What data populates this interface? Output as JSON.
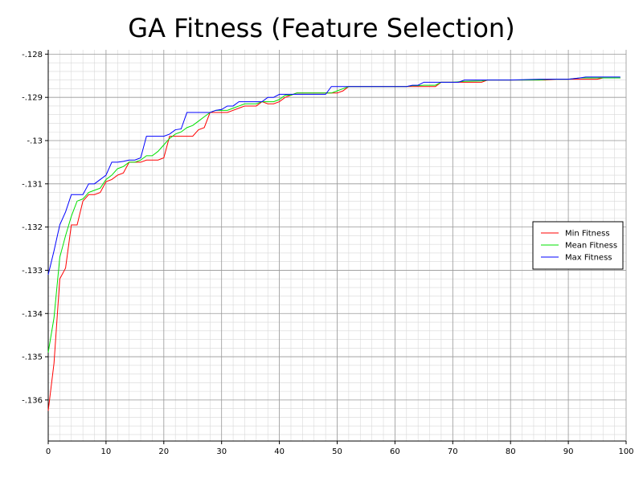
{
  "chart_data": {
    "type": "line",
    "title": "GA Fitness (Feature Selection)",
    "xlabel": "",
    "ylabel": "",
    "xlim": [
      0,
      100
    ],
    "ylim": [
      -0.13695,
      -0.1279
    ],
    "x_ticks": [
      0,
      10,
      20,
      30,
      40,
      50,
      60,
      70,
      80,
      90,
      100
    ],
    "y_ticks": [
      -0.128,
      -0.129,
      -0.13,
      -0.131,
      -0.132,
      -0.133,
      -0.134,
      -0.135,
      -0.136
    ],
    "y_tick_labels": [
      "-.128",
      "-.129",
      "-.13",
      "-.131",
      "-.132",
      "-.133",
      "-.134",
      "-.135",
      "-.136"
    ],
    "grid": true,
    "minor_grid": true,
    "legend_position": "right",
    "series": [
      {
        "name": "Min Fitness",
        "color": "#ff0000",
        "points": [
          [
            0,
            -0.13625
          ],
          [
            1,
            -0.13515
          ],
          [
            2,
            -0.1332
          ],
          [
            3,
            -0.13295
          ],
          [
            4,
            -0.13195
          ],
          [
            5,
            -0.13195
          ],
          [
            6,
            -0.1314
          ],
          [
            7,
            -0.13125
          ],
          [
            8,
            -0.13125
          ],
          [
            9,
            -0.1312
          ],
          [
            10,
            -0.13095
          ],
          [
            11,
            -0.1309
          ],
          [
            12,
            -0.1308
          ],
          [
            13,
            -0.13075
          ],
          [
            14,
            -0.1305
          ],
          [
            15,
            -0.1305
          ],
          [
            16,
            -0.1305
          ],
          [
            17,
            -0.13045
          ],
          [
            18,
            -0.13045
          ],
          [
            19,
            -0.13045
          ],
          [
            20,
            -0.1304
          ],
          [
            21,
            -0.1299
          ],
          [
            22,
            -0.1299
          ],
          [
            23,
            -0.1299
          ],
          [
            24,
            -0.1299
          ],
          [
            25,
            -0.1299
          ],
          [
            26,
            -0.12975
          ],
          [
            27,
            -0.1297
          ],
          [
            28,
            -0.12935
          ],
          [
            29,
            -0.12935
          ],
          [
            30,
            -0.12935
          ],
          [
            31,
            -0.12935
          ],
          [
            32,
            -0.1293
          ],
          [
            33,
            -0.12925
          ],
          [
            34,
            -0.1292
          ],
          [
            35,
            -0.1292
          ],
          [
            36,
            -0.1292
          ],
          [
            37,
            -0.1291
          ],
          [
            38,
            -0.12915
          ],
          [
            39,
            -0.12915
          ],
          [
            40,
            -0.1291
          ],
          [
            41,
            -0.129
          ],
          [
            42,
            -0.12895
          ],
          [
            43,
            -0.1289
          ],
          [
            44,
            -0.1289
          ],
          [
            45,
            -0.1289
          ],
          [
            46,
            -0.1289
          ],
          [
            47,
            -0.1289
          ],
          [
            48,
            -0.1289
          ],
          [
            49,
            -0.1289
          ],
          [
            50,
            -0.1289
          ],
          [
            51,
            -0.12885
          ],
          [
            52,
            -0.12875
          ],
          [
            55,
            -0.12875
          ],
          [
            60,
            -0.12875
          ],
          [
            62,
            -0.12875
          ],
          [
            63,
            -0.12875
          ],
          [
            64,
            -0.12875
          ],
          [
            65,
            -0.12875
          ],
          [
            67,
            -0.12875
          ],
          [
            68,
            -0.12865
          ],
          [
            70,
            -0.12865
          ],
          [
            71,
            -0.12865
          ],
          [
            72,
            -0.12865
          ],
          [
            75,
            -0.12865
          ],
          [
            76,
            -0.1286
          ],
          [
            80,
            -0.1286
          ],
          [
            85,
            -0.1286
          ],
          [
            86,
            -0.1286
          ],
          [
            88,
            -0.12858
          ],
          [
            90,
            -0.12858
          ],
          [
            92,
            -0.12858
          ],
          [
            93,
            -0.12858
          ],
          [
            95,
            -0.12858
          ],
          [
            96,
            -0.12855
          ],
          [
            99,
            -0.12855
          ]
        ]
      },
      {
        "name": "Mean Fitness",
        "color": "#00e000",
        "points": [
          [
            0,
            -0.1349
          ],
          [
            1,
            -0.1341
          ],
          [
            2,
            -0.1327
          ],
          [
            3,
            -0.1322
          ],
          [
            4,
            -0.13175
          ],
          [
            5,
            -0.1314
          ],
          [
            6,
            -0.13135
          ],
          [
            7,
            -0.1312
          ],
          [
            8,
            -0.13115
          ],
          [
            9,
            -0.1311
          ],
          [
            10,
            -0.1309
          ],
          [
            11,
            -0.1308
          ],
          [
            12,
            -0.13065
          ],
          [
            13,
            -0.1306
          ],
          [
            14,
            -0.1305
          ],
          [
            15,
            -0.1305
          ],
          [
            16,
            -0.13045
          ],
          [
            17,
            -0.13035
          ],
          [
            18,
            -0.13035
          ],
          [
            19,
            -0.13025
          ],
          [
            20,
            -0.1301
          ],
          [
            21,
            -0.12995
          ],
          [
            22,
            -0.12985
          ],
          [
            23,
            -0.1298
          ],
          [
            24,
            -0.1297
          ],
          [
            25,
            -0.12965
          ],
          [
            26,
            -0.12955
          ],
          [
            27,
            -0.12945
          ],
          [
            28,
            -0.12935
          ],
          [
            29,
            -0.1293
          ],
          [
            30,
            -0.1293
          ],
          [
            31,
            -0.1293
          ],
          [
            32,
            -0.12925
          ],
          [
            33,
            -0.1292
          ],
          [
            34,
            -0.12915
          ],
          [
            35,
            -0.12915
          ],
          [
            36,
            -0.12915
          ],
          [
            37,
            -0.1291
          ],
          [
            38,
            -0.1291
          ],
          [
            39,
            -0.1291
          ],
          [
            40,
            -0.12905
          ],
          [
            41,
            -0.12895
          ],
          [
            42,
            -0.12895
          ],
          [
            43,
            -0.1289
          ],
          [
            44,
            -0.1289
          ],
          [
            45,
            -0.1289
          ],
          [
            46,
            -0.1289
          ],
          [
            47,
            -0.1289
          ],
          [
            48,
            -0.1289
          ],
          [
            49,
            -0.1289
          ],
          [
            50,
            -0.12885
          ],
          [
            51,
            -0.1288
          ],
          [
            52,
            -0.12875
          ],
          [
            55,
            -0.12875
          ],
          [
            60,
            -0.12875
          ],
          [
            62,
            -0.12875
          ],
          [
            63,
            -0.12873
          ],
          [
            64,
            -0.12873
          ],
          [
            65,
            -0.12872
          ],
          [
            67,
            -0.12872
          ],
          [
            68,
            -0.12865
          ],
          [
            70,
            -0.12865
          ],
          [
            72,
            -0.12863
          ],
          [
            75,
            -0.12862
          ],
          [
            76,
            -0.1286
          ],
          [
            80,
            -0.1286
          ],
          [
            85,
            -0.1286
          ],
          [
            87,
            -0.12858
          ],
          [
            90,
            -0.12858
          ],
          [
            92,
            -0.12855
          ],
          [
            95,
            -0.12855
          ],
          [
            99,
            -0.12855
          ]
        ]
      },
      {
        "name": "Max Fitness",
        "color": "#0000ff",
        "points": [
          [
            0,
            -0.1331
          ],
          [
            1,
            -0.13255
          ],
          [
            2,
            -0.13195
          ],
          [
            3,
            -0.13165
          ],
          [
            4,
            -0.13125
          ],
          [
            5,
            -0.13125
          ],
          [
            6,
            -0.13125
          ],
          [
            7,
            -0.131
          ],
          [
            8,
            -0.131
          ],
          [
            9,
            -0.1309
          ],
          [
            10,
            -0.1308
          ],
          [
            11,
            -0.1305
          ],
          [
            12,
            -0.1305
          ],
          [
            13,
            -0.13048
          ],
          [
            14,
            -0.13045
          ],
          [
            15,
            -0.13045
          ],
          [
            16,
            -0.1304
          ],
          [
            17,
            -0.1299
          ],
          [
            18,
            -0.1299
          ],
          [
            19,
            -0.1299
          ],
          [
            20,
            -0.1299
          ],
          [
            21,
            -0.12985
          ],
          [
            22,
            -0.12975
          ],
          [
            23,
            -0.12973
          ],
          [
            24,
            -0.12935
          ],
          [
            25,
            -0.12935
          ],
          [
            26,
            -0.12935
          ],
          [
            27,
            -0.12935
          ],
          [
            28,
            -0.12935
          ],
          [
            29,
            -0.1293
          ],
          [
            30,
            -0.12928
          ],
          [
            31,
            -0.1292
          ],
          [
            32,
            -0.1292
          ],
          [
            33,
            -0.1291
          ],
          [
            34,
            -0.1291
          ],
          [
            35,
            -0.1291
          ],
          [
            36,
            -0.1291
          ],
          [
            37,
            -0.1291
          ],
          [
            38,
            -0.129
          ],
          [
            39,
            -0.129
          ],
          [
            40,
            -0.12893
          ],
          [
            41,
            -0.12893
          ],
          [
            42,
            -0.12893
          ],
          [
            43,
            -0.12893
          ],
          [
            44,
            -0.12893
          ],
          [
            45,
            -0.12893
          ],
          [
            46,
            -0.12893
          ],
          [
            47,
            -0.12893
          ],
          [
            48,
            -0.12893
          ],
          [
            49,
            -0.12875
          ],
          [
            50,
            -0.12875
          ],
          [
            51,
            -0.12875
          ],
          [
            52,
            -0.12875
          ],
          [
            55,
            -0.12875
          ],
          [
            60,
            -0.12875
          ],
          [
            62,
            -0.12875
          ],
          [
            63,
            -0.12872
          ],
          [
            64,
            -0.12872
          ],
          [
            65,
            -0.12865
          ],
          [
            67,
            -0.12865
          ],
          [
            70,
            -0.12865
          ],
          [
            71,
            -0.12865
          ],
          [
            72,
            -0.1286
          ],
          [
            75,
            -0.1286
          ],
          [
            80,
            -0.1286
          ],
          [
            85,
            -0.12858
          ],
          [
            87,
            -0.12858
          ],
          [
            90,
            -0.12858
          ],
          [
            92,
            -0.12855
          ],
          [
            93,
            -0.12853
          ],
          [
            95,
            -0.12853
          ],
          [
            99,
            -0.12853
          ]
        ]
      }
    ]
  }
}
